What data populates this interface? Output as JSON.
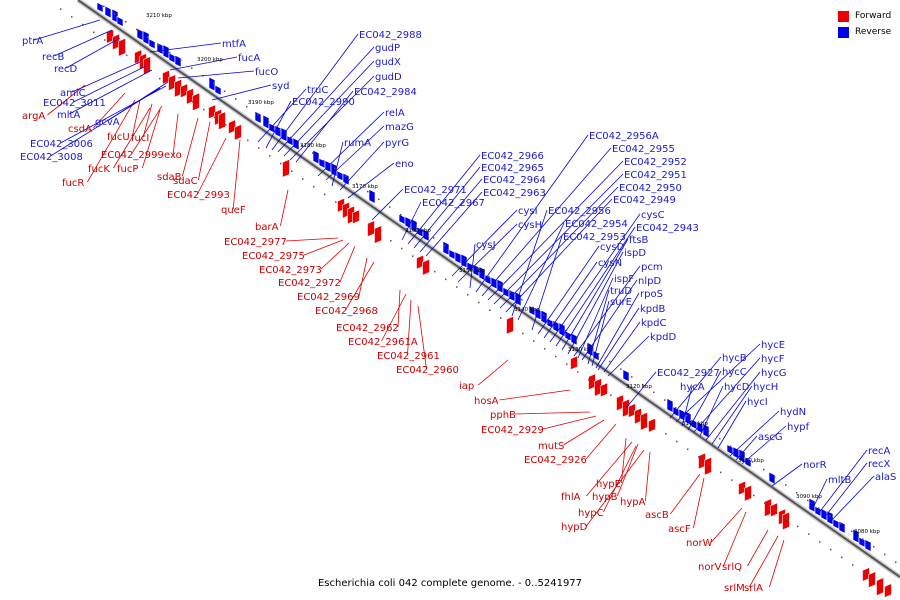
{
  "caption": "Escherichia coli 042 complete genome. - 0..5241977",
  "legend": {
    "forward_label": "Forward",
    "reverse_label": "Reverse",
    "forward_color": "#ee0000",
    "reverse_color": "#0000ee"
  },
  "ticks": [
    "3210 kbp",
    "3200 kbp",
    "3190 kbp",
    "3180 kbp",
    "3170 kbp",
    "3160 kbp",
    "3150 kbp",
    "3140 kbp",
    "3130 kbp",
    "3120 kbp",
    "3110 kbp",
    "3100 kbp",
    "3090 kbp",
    "3080 kbp"
  ],
  "forward_labels": [
    "argA",
    "csdA",
    "fucU",
    "fucI",
    "EC042_2999",
    "exo",
    "fucK",
    "fucP",
    "fucR",
    "sdaB",
    "sdaC",
    "EC042_2993",
    "queF",
    "barA",
    "EC042_2977",
    "EC042_2975",
    "EC042_2973",
    "EC042_2972",
    "EC042_2969",
    "EC042_2968",
    "EC042_2962",
    "EC042_2961A",
    "EC042_2961",
    "EC042_2960",
    "iap",
    "hosA",
    "pphB",
    "EC042_2929",
    "mutS",
    "EC042_2926",
    "hypE",
    "fhlA",
    "hypB",
    "hypC",
    "hypD",
    "hypA",
    "ascB",
    "ascF",
    "norW",
    "norV",
    "srlQ",
    "srlM",
    "srlA"
  ],
  "reverse_labels": [
    "ptrA",
    "recB",
    "recD",
    "mtfA",
    "fucA",
    "fucO",
    "syd",
    "amiC",
    "EC042_3011",
    "mltA",
    "gcvA",
    "EC042_3006",
    "EC042_3008",
    "truC",
    "EC042_2990",
    "EC042_2988",
    "gudP",
    "gudX",
    "gudD",
    "EC042_2984",
    "relA",
    "mazG",
    "rumA",
    "pyrG",
    "eno",
    "EC042_2971",
    "EC042_2967",
    "EC042_2966",
    "EC042_2965",
    "EC042_2964",
    "EC042_2963",
    "cysI",
    "cysH",
    "cysJ",
    "EC042_2956A",
    "EC042_2955",
    "EC042_2952",
    "EC042_2951",
    "EC042_2950",
    "EC042_2949",
    "EC042_2956",
    "EC042_2954",
    "EC042_2953",
    "cysD",
    "cysN",
    "cysC",
    "EC042_2943",
    "ftsB",
    "ispD",
    "pcm",
    "ispF",
    "nlpD",
    "truD",
    "surE",
    "rpoS",
    "kpdB",
    "kpdC",
    "kpdD",
    "EC042_2927",
    "hycB",
    "hycE",
    "hycA",
    "hycC",
    "hycF",
    "hycD",
    "hycG",
    "hycH",
    "hycI",
    "hydN",
    "ascG",
    "hypf",
    "norR",
    "mltB",
    "recA",
    "recX",
    "alaS"
  ]
}
